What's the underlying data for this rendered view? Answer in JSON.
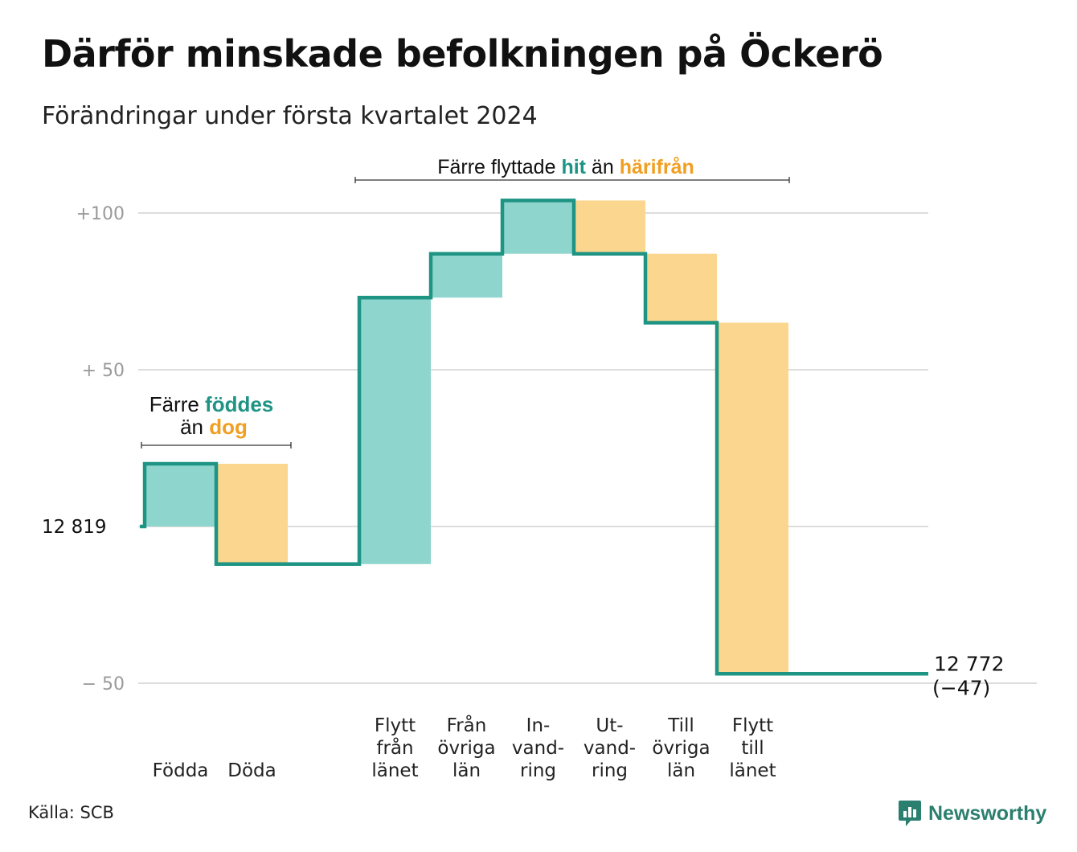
{
  "title": "Därför minskade befolkningen på Öckerö",
  "subtitle": "Förändringar under första kvartalet 2024",
  "source": "Källa: SCB",
  "brand": {
    "name": "Newsworthy",
    "icon": "newsworthy-logo-icon"
  },
  "colors": {
    "increase": "#8dd5cd",
    "decrease": "#fbd68e",
    "line": "#1e9484",
    "hit": "#1e9484",
    "harifran": "#f09f22",
    "grid": "#dddddd",
    "tick": "#9a9a9a"
  },
  "chart_data": {
    "type": "waterfall",
    "start": {
      "label": "12  819",
      "value": 12819
    },
    "end": {
      "label": "12 772",
      "change_label": "(−47)",
      "value": 12772
    },
    "y_ticks": [
      {
        "value": 100,
        "label": "+100"
      },
      {
        "value": 50,
        "label": "+  50"
      },
      {
        "value": -50,
        "label": "−  50"
      }
    ],
    "ylim": [
      -56,
      108
    ],
    "steps": [
      {
        "label": [
          "Födda"
        ],
        "value": 20
      },
      {
        "label": [
          "Döda"
        ],
        "value": -32
      },
      {
        "label": [
          ""
        ],
        "value": 0
      },
      {
        "label": [
          "Flytt",
          "från",
          "länet"
        ],
        "value": 85
      },
      {
        "label": [
          "Från",
          "övriga",
          "län"
        ],
        "value": 14
      },
      {
        "label": [
          "In-",
          "vand-",
          "ring"
        ],
        "value": 17
      },
      {
        "label": [
          "Ut-",
          "vand-",
          "ring"
        ],
        "value": -17
      },
      {
        "label": [
          "Till",
          "övriga",
          "län"
        ],
        "value": -22
      },
      {
        "label": [
          "Flytt",
          "till",
          "länet"
        ],
        "value": -112
      }
    ],
    "annotations": [
      {
        "pre": "Färre",
        "hl1": "föddes",
        "line2": "än",
        "hl2": "dog"
      },
      {
        "pre": "Färre flyttade",
        "hl1": "hit",
        "mid": "än",
        "hl2": "härifrån"
      }
    ]
  }
}
